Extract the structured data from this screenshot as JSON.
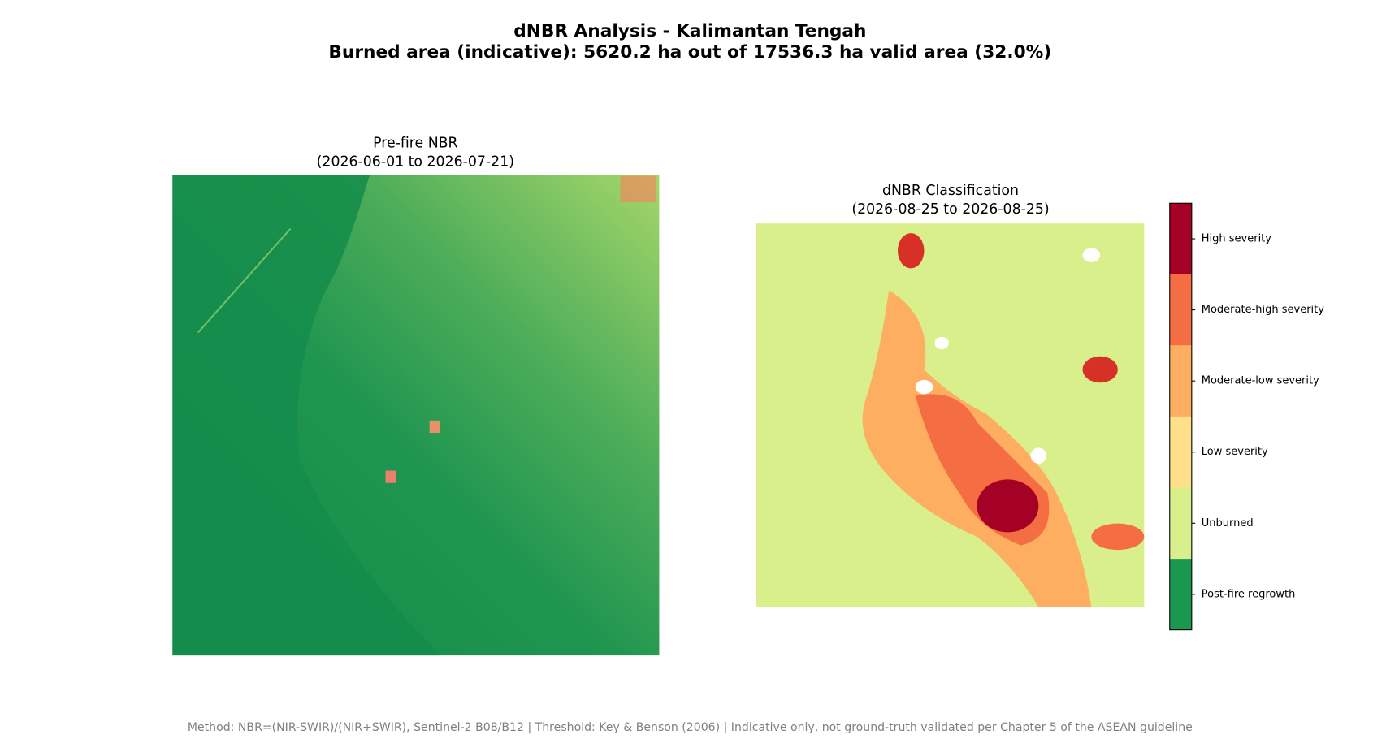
{
  "figure": {
    "title": "dNBR Analysis - Kalimantan Tengah",
    "subtitle": "Burned area (indicative): 5620.2 ha out of 17536.3 ha valid area (32.0%)",
    "panels": [
      {
        "title": "Pre-fire NBR",
        "subtitle": "(2026-06-01 to 2026-07-21)"
      },
      {
        "title": "dNBR Classification",
        "subtitle": "(2026-08-25 to 2026-08-25)"
      }
    ],
    "legend": [
      {
        "label": "High severity",
        "color": "#a50026"
      },
      {
        "label": "Moderate-high severity",
        "color": "#f46d43"
      },
      {
        "label": "Moderate-low severity",
        "color": "#fdae61"
      },
      {
        "label": "Low severity",
        "color": "#fee08b"
      },
      {
        "label": "Unburned",
        "color": "#d9ef8b"
      },
      {
        "label": "Post-fire regrowth",
        "color": "#1a9850"
      }
    ],
    "footnote": "Method: NBR=(NIR-SWIR)/(NIR+SWIR), Sentinel-2 B08/B12 | Threshold: Key & Benson (2006) | Indicative only, not ground-truth validated per Chapter 5 of the ASEAN guideline"
  }
}
